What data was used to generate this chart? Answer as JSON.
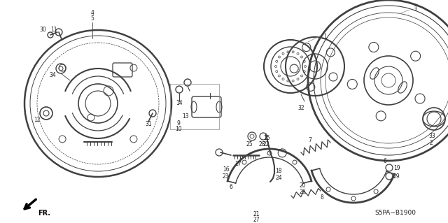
{
  "bg_color": "#ffffff",
  "diagram_code": "S5PA−B1900",
  "fr_label": "FR.",
  "line_color": "#404040",
  "text_color": "#202020",
  "figsize": [
    6.4,
    3.19
  ],
  "dpi": 100
}
